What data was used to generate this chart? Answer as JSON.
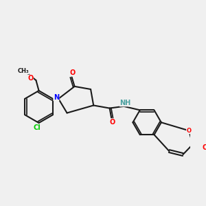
{
  "bg_color": "#f0f0f0",
  "bond_color": "#1a1a1a",
  "atom_colors": {
    "O": "#ff0000",
    "N": "#0000ff",
    "Cl": "#00cc00",
    "H": "#4aa0a0",
    "C": "#1a1a1a"
  },
  "figsize": [
    3.0,
    3.0
  ],
  "dpi": 100
}
